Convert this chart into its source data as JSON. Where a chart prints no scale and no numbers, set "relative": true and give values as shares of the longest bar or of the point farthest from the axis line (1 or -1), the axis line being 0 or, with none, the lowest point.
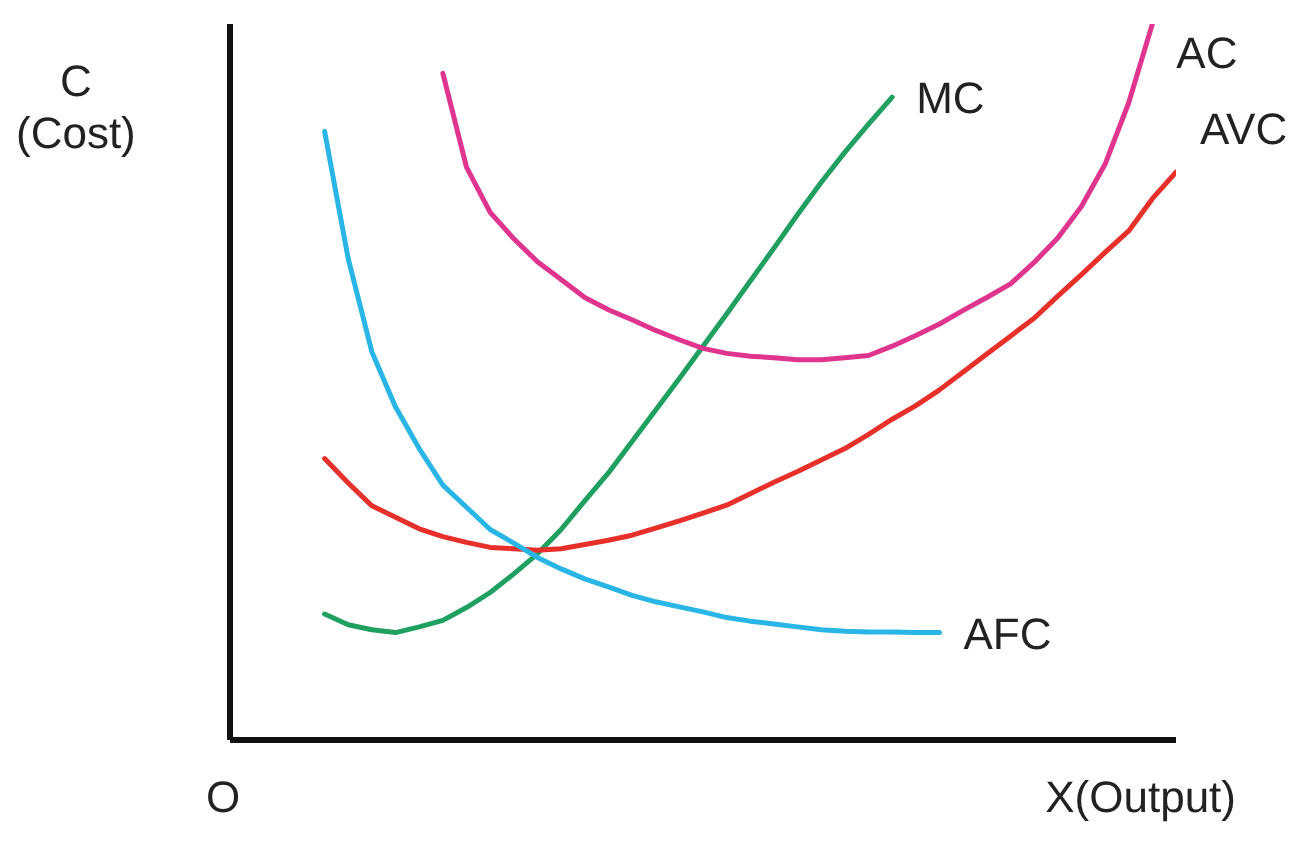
{
  "chart_data": {
    "type": "line",
    "relative": true,
    "ylabel": "C\n(Cost)",
    "xlabel": "X(Output)",
    "annotations": [
      "O"
    ],
    "categories": [
      null,
      null,
      null,
      null,
      null,
      null,
      null,
      null,
      null,
      null,
      null,
      null,
      null,
      null,
      null,
      null,
      null,
      null,
      null,
      null,
      null,
      null,
      null,
      null,
      null,
      null,
      null,
      null,
      null,
      null,
      null,
      null,
      null,
      null,
      null,
      null,
      null
    ],
    "series": [
      {
        "name": "MC",
        "color": "#1fa060",
        "values": [
          0.176,
          0.161,
          0.154,
          0.15,
          0.158,
          0.167,
          0.185,
          0.206,
          0.232,
          0.26,
          0.294,
          0.334,
          0.373,
          0.417,
          0.461,
          0.505,
          0.55,
          0.595,
          0.641,
          0.687,
          0.734,
          0.779,
          0.821,
          0.86,
          0.898,
          null,
          null,
          null,
          null,
          null,
          null,
          null,
          null,
          null,
          null,
          null,
          null
        ]
      },
      {
        "name": "AC",
        "color": "#e0358f",
        "values": [
          null,
          null,
          null,
          null,
          null,
          0.931,
          0.8,
          0.737,
          0.7,
          0.668,
          0.643,
          0.618,
          0.601,
          0.587,
          0.572,
          0.559,
          0.547,
          0.54,
          0.536,
          0.534,
          0.531,
          0.531,
          0.534,
          0.537,
          0.55,
          0.565,
          0.581,
          0.6,
          0.618,
          0.637,
          0.667,
          0.701,
          0.745,
          0.804,
          0.89,
          1,
          null
        ]
      },
      {
        "name": "AVC",
        "color": "#e8302a",
        "values": [
          0.393,
          0.359,
          0.327,
          0.311,
          0.295,
          0.284,
          0.276,
          0.269,
          0.267,
          0.265,
          0.267,
          0.273,
          0.279,
          0.286,
          0.296,
          0.306,
          0.317,
          0.328,
          0.344,
          0.36,
          0.375,
          0.391,
          0.407,
          0.427,
          0.448,
          0.467,
          0.489,
          0.514,
          0.539,
          0.564,
          0.589,
          0.62,
          0.65,
          0.681,
          0.711,
          0.756,
          0.793
        ]
      },
      {
        "name": "AFC",
        "color": "#29b6e6",
        "values": [
          0.85,
          0.672,
          0.542,
          0.465,
          0.407,
          0.356,
          0.325,
          0.294,
          0.275,
          0.255,
          0.239,
          0.225,
          0.214,
          0.202,
          0.193,
          0.186,
          0.179,
          0.171,
          0.166,
          0.162,
          0.158,
          0.154,
          0.152,
          0.151,
          0.151,
          0.15,
          0.15,
          null,
          null,
          null,
          null,
          null,
          null,
          null,
          null,
          null,
          null
        ]
      }
    ]
  }
}
